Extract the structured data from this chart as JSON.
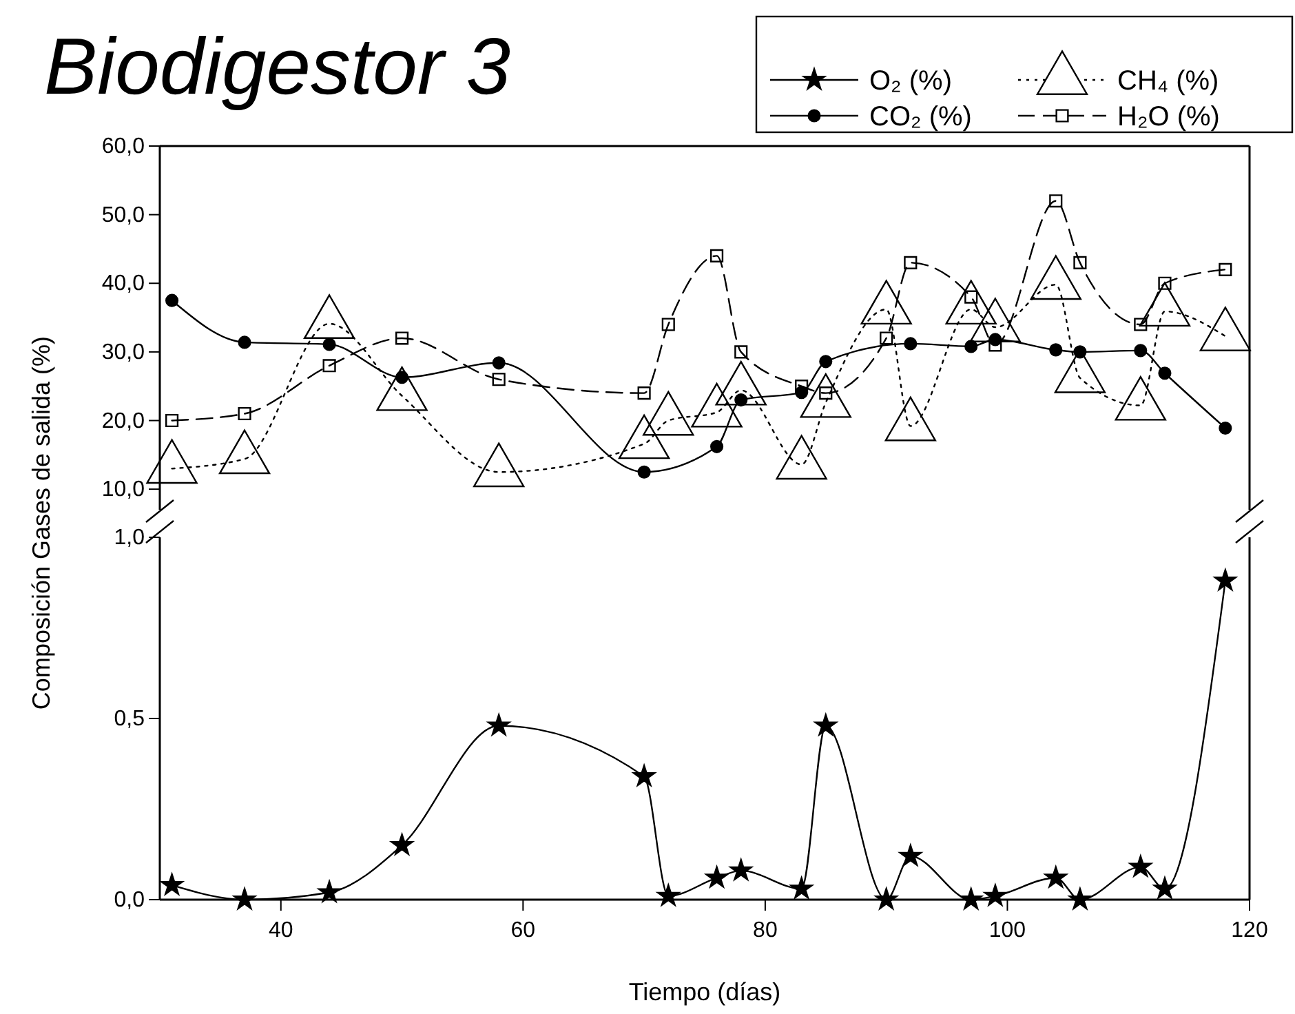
{
  "chart_data": [
    {
      "type": "line",
      "title": "Biodigestor 3",
      "ylabel": "Composición Gases de salida (%)",
      "legend": "top right",
      "tick_labels": "y",
      "xlim": [
        30,
        120
      ],
      "ylim": [
        7,
        60
      ],
      "yticks": [
        {
          "value": 10,
          "label": "10,0"
        },
        {
          "value": 20,
          "label": "20,0"
        },
        {
          "value": 30,
          "label": "30,0"
        },
        {
          "value": 40,
          "label": "40,0"
        },
        {
          "value": 50,
          "label": "50,0"
        },
        {
          "value": 60,
          "label": "60,0"
        }
      ],
      "series": [
        {
          "name": "CO₂ (%)",
          "color": "#000000",
          "marker": "circle",
          "line_style": "solid",
          "x": [
            31,
            37,
            44,
            50,
            58,
            70,
            76,
            78,
            83,
            85,
            92,
            97,
            99,
            104,
            106,
            111,
            113,
            118
          ],
          "values": [
            37.5,
            31.4,
            31.1,
            26.3,
            28.4,
            12.5,
            16.2,
            23,
            24.1,
            28.6,
            31.2,
            30.8,
            31.8,
            30.3,
            30,
            30.2,
            26.9,
            18.9
          ]
        },
        {
          "name": "CH₄ (%)",
          "color": "#000000",
          "marker": "triangle",
          "line_style": "dotted",
          "x": [
            31,
            37,
            44,
            50,
            58,
            70,
            72,
            76,
            78,
            83,
            85,
            90,
            92,
            97,
            99,
            104,
            106,
            111,
            113,
            118
          ],
          "values": [
            13,
            14.4,
            34.1,
            23.6,
            12.5,
            16.6,
            20,
            21.2,
            24.4,
            13.6,
            22.6,
            36.2,
            19.2,
            36.2,
            33.6,
            39.8,
            26.2,
            22.2,
            35.9,
            32.3
          ]
        },
        {
          "name": "H₂O (%)",
          "color": "#000000",
          "marker": "square",
          "line_style": "dashed",
          "x": [
            31,
            37,
            44,
            50,
            58,
            70,
            72,
            76,
            78,
            83,
            85,
            90,
            92,
            97,
            99,
            104,
            106,
            111,
            113,
            118
          ],
          "values": [
            20,
            21,
            28,
            32,
            26,
            24,
            34,
            44,
            30,
            25,
            24,
            32,
            43,
            38,
            31,
            52,
            43,
            34,
            40,
            42
          ]
        }
      ]
    },
    {
      "type": "line",
      "xlabel": "Tiempo (días)",
      "legend": "top right",
      "xlim": [
        30,
        120
      ],
      "xticks": [
        40,
        60,
        80,
        100,
        120
      ],
      "ylim": [
        0,
        1
      ],
      "yticks": [
        {
          "value": 0,
          "label": "0,0"
        },
        {
          "value": 0.5,
          "label": "0,5"
        },
        {
          "value": 1,
          "label": "1,0"
        }
      ],
      "series": [
        {
          "name": "O₂ (%)",
          "color": "#000000",
          "marker": "star",
          "line_style": "solid",
          "x": [
            31,
            37,
            44,
            50,
            58,
            70,
            72,
            76,
            78,
            83,
            85,
            90,
            92,
            97,
            99,
            104,
            106,
            111,
            113,
            118
          ],
          "values": [
            0.04,
            0,
            0.02,
            0.15,
            0.48,
            0.34,
            0.01,
            0.06,
            0.08,
            0.03,
            0.48,
            0,
            0.12,
            0,
            0.01,
            0.06,
            0,
            0.09,
            0.03,
            0.88
          ]
        }
      ]
    }
  ]
}
